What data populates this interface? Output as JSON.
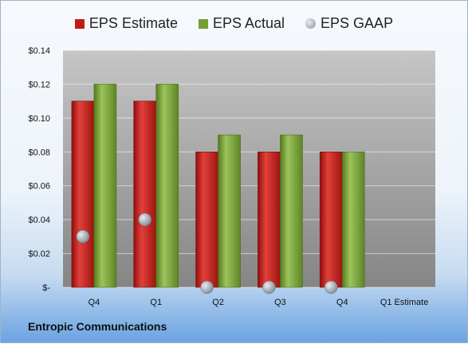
{
  "legend": {
    "estimate": "EPS Estimate",
    "actual": "EPS Actual",
    "gaap": "EPS GAAP"
  },
  "company": "Entropic Communications",
  "colors": {
    "estimate": "#c11b17",
    "actual": "#76a034",
    "gaap": "#9aa3ae"
  },
  "chart_data": {
    "type": "bar",
    "categories": [
      "Q4",
      "Q1",
      "Q2",
      "Q3",
      "Q4",
      "Q1 Estimate"
    ],
    "series": [
      {
        "name": "EPS Estimate",
        "values": [
          0.11,
          0.11,
          0.08,
          0.08,
          0.08,
          null
        ]
      },
      {
        "name": "EPS Actual",
        "values": [
          0.12,
          0.12,
          0.09,
          0.09,
          0.08,
          null
        ]
      },
      {
        "name": "EPS GAAP",
        "values": [
          0.03,
          0.04,
          0.0,
          0.0,
          0.0,
          null
        ]
      }
    ],
    "ylim": [
      0,
      0.14
    ],
    "yticks": [
      0,
      0.02,
      0.04,
      0.06,
      0.08,
      0.1,
      0.12,
      0.14
    ],
    "ytick_labels": [
      "$-",
      "$0.02",
      "$0.04",
      "$0.06",
      "$0.08",
      "$0.10",
      "$0.12",
      "$0.14"
    ],
    "grid": true,
    "legend_position": "top"
  }
}
